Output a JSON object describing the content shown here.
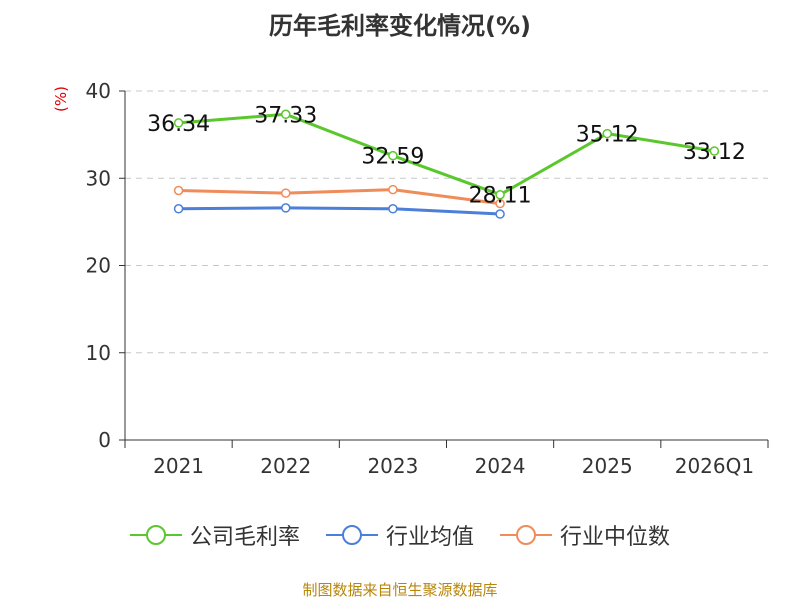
{
  "chart_data": {
    "type": "line",
    "title": "历年毛利率变化情况(%)",
    "unit_label": "(%)",
    "categories": [
      "2021",
      "2022",
      "2023",
      "2024",
      "2025",
      "2026Q1"
    ],
    "ylim": [
      0,
      40
    ],
    "yticks": [
      0,
      10,
      20,
      30,
      40
    ],
    "grid": true,
    "legend_position": "bottom",
    "series": [
      {
        "name": "公司毛利率",
        "color": "#5ac72c",
        "labeled": true,
        "values": [
          36.34,
          37.33,
          32.59,
          28.11,
          35.12,
          33.12
        ],
        "labels": [
          "36.34",
          "37.33",
          "32.59",
          "28.11",
          "35.12",
          "33.12"
        ]
      },
      {
        "name": "行业均值",
        "color": "#4c7fd8",
        "labeled": false,
        "values": [
          26.5,
          26.6,
          26.5,
          25.9,
          null,
          null
        ]
      },
      {
        "name": "行业中位数",
        "color": "#f08c5a",
        "labeled": false,
        "values": [
          28.6,
          28.3,
          28.7,
          27.1,
          null,
          null
        ]
      }
    ]
  },
  "source": "制图数据来自恒生聚源数据库"
}
